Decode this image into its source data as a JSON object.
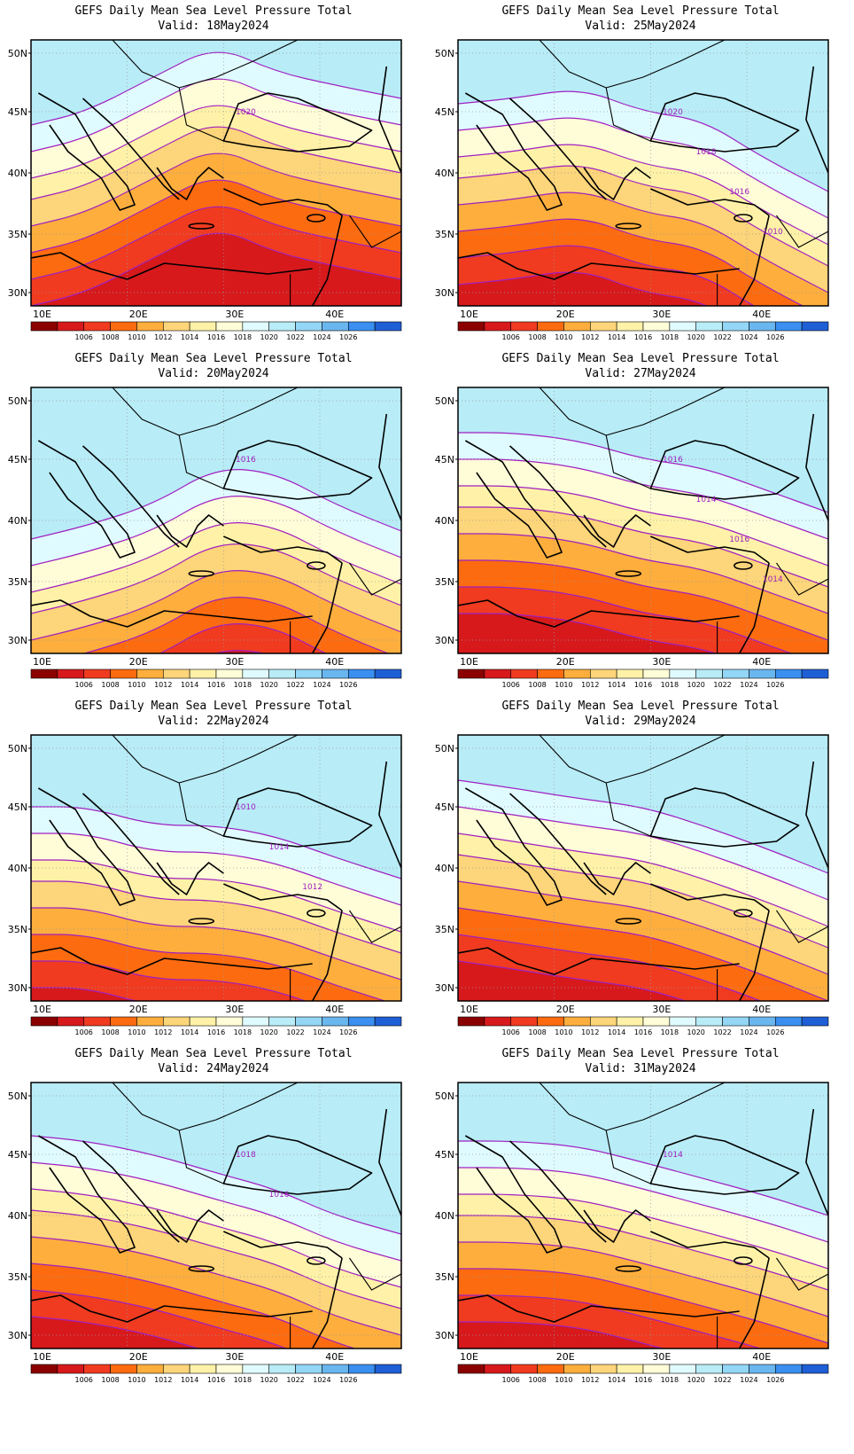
{
  "colorbar": {
    "colors": [
      "#8b0000",
      "#d7191c",
      "#f03b20",
      "#fd6b10",
      "#fdae3d",
      "#fdd57a",
      "#fff2a8",
      "#fffcd8",
      "#e0fbff",
      "#b8ecf7",
      "#93d6f5",
      "#6ab6ee",
      "#3a8ff0",
      "#1f5fd6"
    ],
    "labels": [
      "1006",
      "1008",
      "1010",
      "1012",
      "1014",
      "1016",
      "1018",
      "1020",
      "1022",
      "1024",
      "1026"
    ]
  },
  "axes": {
    "lat_labels": [
      "50N",
      "45N",
      "40N",
      "35N",
      "30N"
    ],
    "lon_labels": [
      "10E",
      "20E",
      "30E",
      "40E"
    ]
  },
  "contour_color": "#a020c0",
  "panels": [
    {
      "title": "GEFS Daily Mean Sea Level Pressure Total",
      "valid": "Valid: 18May2024",
      "labels": [
        "1020"
      ],
      "bands": [
        [
          0.0,
          0.6
        ],
        [
          0.15,
          0.55
        ],
        [
          0.33,
          0.42
        ],
        [
          0.5,
          0.3
        ],
        [
          0.66,
          0.4
        ],
        [
          0.82,
          0.45
        ],
        [
          1.0,
          0.5
        ]
      ]
    },
    {
      "title": "GEFS Daily Mean Sea Level Pressure Total",
      "valid": "Valid: 25May2024",
      "labels": [
        "1020",
        "1018",
        "1016",
        "1010"
      ],
      "bands": [
        [
          0.0,
          0.52
        ],
        [
          0.15,
          0.5
        ],
        [
          0.33,
          0.46
        ],
        [
          0.5,
          0.55
        ],
        [
          0.66,
          0.58
        ],
        [
          0.82,
          0.72
        ],
        [
          1.0,
          0.85
        ]
      ]
    },
    {
      "title": "GEFS Daily Mean Sea Level Pressure Total",
      "valid": "Valid: 20May2024",
      "labels": [
        "1016"
      ],
      "bands": [
        [
          0.0,
          0.85
        ],
        [
          0.15,
          0.8
        ],
        [
          0.33,
          0.72
        ],
        [
          0.5,
          0.58
        ],
        [
          0.66,
          0.6
        ],
        [
          0.82,
          0.72
        ],
        [
          1.0,
          0.82
        ]
      ]
    },
    {
      "title": "GEFS Daily Mean Sea Level Pressure Total",
      "valid": "Valid: 27May2024",
      "labels": [
        "1016",
        "1014",
        "1016",
        "1014"
      ],
      "bands": [
        [
          0.0,
          0.45
        ],
        [
          0.15,
          0.45
        ],
        [
          0.33,
          0.48
        ],
        [
          0.5,
          0.55
        ],
        [
          0.66,
          0.58
        ],
        [
          0.82,
          0.66
        ],
        [
          1.0,
          0.75
        ]
      ]
    },
    {
      "title": "GEFS Daily Mean Sea Level Pressure Total",
      "valid": "Valid: 22May2024",
      "labels": [
        "1010",
        "1014",
        "1012"
      ],
      "bands": [
        [
          0.0,
          0.55
        ],
        [
          0.15,
          0.55
        ],
        [
          0.33,
          0.62
        ],
        [
          0.5,
          0.62
        ],
        [
          0.66,
          0.66
        ],
        [
          0.82,
          0.74
        ],
        [
          1.0,
          0.82
        ]
      ]
    },
    {
      "title": "GEFS Daily Mean Sea Level Pressure Total",
      "valid": "Valid: 29May2024",
      "labels": [],
      "bands": [
        [
          0.0,
          0.45
        ],
        [
          0.15,
          0.48
        ],
        [
          0.33,
          0.52
        ],
        [
          0.5,
          0.55
        ],
        [
          0.66,
          0.62
        ],
        [
          0.82,
          0.7
        ],
        [
          1.0,
          0.8
        ]
      ]
    },
    {
      "title": "GEFS Daily Mean Sea Level Pressure Total",
      "valid": "Valid: 24May2024",
      "labels": [
        "1018",
        "1016"
      ],
      "bands": [
        [
          0.0,
          0.48
        ],
        [
          0.15,
          0.5
        ],
        [
          0.33,
          0.55
        ],
        [
          0.5,
          0.62
        ],
        [
          0.66,
          0.68
        ],
        [
          0.82,
          0.78
        ],
        [
          1.0,
          0.85
        ]
      ]
    },
    {
      "title": "GEFS Daily Mean Sea Level Pressure Total",
      "valid": "Valid: 31May2024",
      "labels": [
        "1014"
      ],
      "bands": [
        [
          0.0,
          0.5
        ],
        [
          0.15,
          0.5
        ],
        [
          0.33,
          0.52
        ],
        [
          0.5,
          0.58
        ],
        [
          0.66,
          0.64
        ],
        [
          0.82,
          0.7
        ],
        [
          1.0,
          0.78
        ]
      ]
    }
  ]
}
